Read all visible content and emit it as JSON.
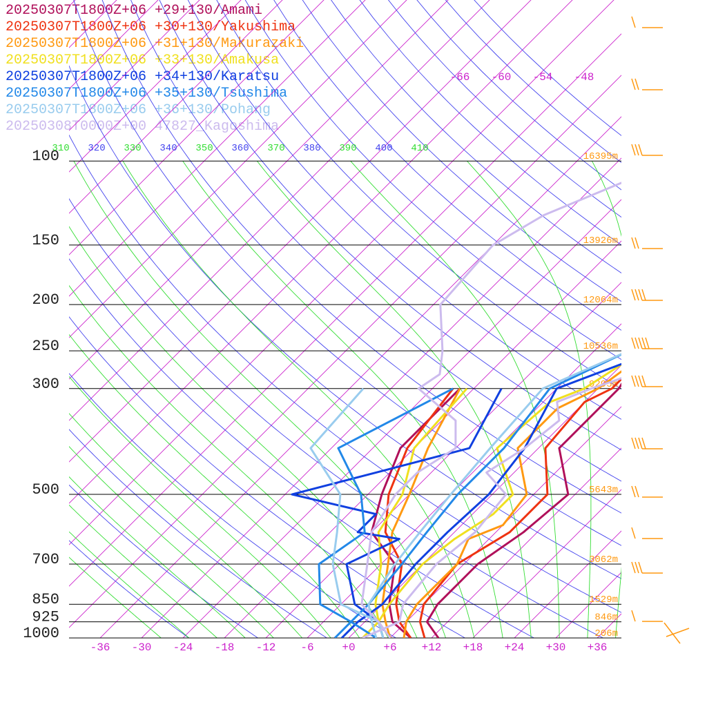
{
  "chart_data": {
    "type": "line",
    "title": "",
    "xlabel": "",
    "ylabel": "",
    "x_range": [
      -40,
      40
    ],
    "temperature_ticks": [
      "-36",
      "-30",
      "-24",
      "-18",
      "-12",
      "-6",
      "+0",
      "+6",
      "+12",
      "+18",
      "+24",
      "+30",
      "+36"
    ],
    "pressure_levels": [
      {
        "label": "100",
        "p": 100,
        "height": "16395m"
      },
      {
        "label": "150",
        "p": 150,
        "height": "13926m"
      },
      {
        "label": "200",
        "p": 200,
        "height": "12064m"
      },
      {
        "label": "250",
        "p": 250,
        "height": "10536m"
      },
      {
        "label": "300",
        "p": 300,
        "height": "9295m"
      },
      {
        "label": "500",
        "p": 500,
        "height": "5643m"
      },
      {
        "label": "700",
        "p": 700,
        "height": "3062m"
      },
      {
        "label": "850",
        "p": 850,
        "height": "1529m"
      },
      {
        "label": "925",
        "p": 925,
        "height": "846m"
      },
      {
        "label": "1000",
        "p": 1000,
        "height": "206m"
      }
    ],
    "theta_labels": [
      "310",
      "320",
      "330",
      "340",
      "350",
      "360",
      "370",
      "380",
      "390",
      "400",
      "410"
    ],
    "isotherm_labels_top": [
      "-66",
      "-60",
      "-54",
      "-48"
    ],
    "series": [
      {
        "name": "20250307T1800Z+06 +29+130/Amami",
        "color": "#b0105a",
        "temperature": [
          [
            1000,
            13
          ],
          [
            925,
            9
          ],
          [
            850,
            8
          ],
          [
            700,
            8
          ],
          [
            600,
            10
          ],
          [
            500,
            11
          ],
          [
            400,
            3
          ],
          [
            300,
            3
          ],
          [
            250,
            1
          ],
          [
            200,
            -1
          ],
          [
            150,
            -5
          ],
          [
            120,
            -8
          ],
          [
            100,
            -6
          ],
          [
            70,
            -4
          ],
          [
            50,
            18
          ]
        ],
        "dewpoint": [
          [
            1000,
            9
          ],
          [
            925,
            4
          ],
          [
            850,
            1
          ],
          [
            700,
            -4
          ],
          [
            600,
            -12
          ],
          [
            500,
            -16
          ],
          [
            400,
            -20
          ],
          [
            300,
            -20
          ]
        ]
      },
      {
        "name": "20250307T1800Z+06 +30+130/Yakushima",
        "color": "#ee3311",
        "temperature": [
          [
            1000,
            11
          ],
          [
            925,
            8
          ],
          [
            850,
            6
          ],
          [
            700,
            5
          ],
          [
            600,
            8
          ],
          [
            500,
            8
          ],
          [
            400,
            1
          ],
          [
            320,
            0
          ],
          [
            300,
            2
          ],
          [
            250,
            2
          ],
          [
            200,
            1
          ],
          [
            150,
            -4
          ],
          [
            130,
            -7
          ],
          [
            100,
            -4
          ],
          [
            70,
            -2
          ],
          [
            50,
            19
          ]
        ],
        "dewpoint": [
          [
            1000,
            9
          ],
          [
            925,
            5
          ],
          [
            850,
            2
          ],
          [
            700,
            -3
          ],
          [
            600,
            -10
          ],
          [
            500,
            -15
          ],
          [
            400,
            -19
          ],
          [
            300,
            -21
          ]
        ]
      },
      {
        "name": "20250307T1800Z+06 +31+130/Makurazaki",
        "color": "#ff9911",
        "temperature": [
          [
            1000,
            8
          ],
          [
            925,
            6
          ],
          [
            850,
            5
          ],
          [
            700,
            5
          ],
          [
            620,
            3
          ],
          [
            580,
            6
          ],
          [
            500,
            5
          ],
          [
            400,
            -3
          ],
          [
            330,
            -3
          ],
          [
            300,
            0
          ],
          [
            250,
            2
          ],
          [
            200,
            0
          ],
          [
            150,
            -1
          ],
          [
            130,
            -4
          ],
          [
            100,
            -1
          ],
          [
            70,
            4
          ],
          [
            50,
            20
          ]
        ],
        "dewpoint": [
          [
            1000,
            6
          ],
          [
            925,
            3
          ],
          [
            850,
            0
          ],
          [
            700,
            -5
          ],
          [
            600,
            -9
          ],
          [
            500,
            -12
          ],
          [
            400,
            -16
          ],
          [
            300,
            -20
          ]
        ]
      },
      {
        "name": "20250307T1800Z+06 +33+130/Amakusa",
        "color": "#f0e020",
        "temperature": [
          [
            1000,
            2
          ],
          [
            925,
            2
          ],
          [
            850,
            1
          ],
          [
            700,
            0
          ],
          [
            620,
            1
          ],
          [
            550,
            3
          ],
          [
            500,
            3
          ],
          [
            400,
            -6
          ],
          [
            320,
            -5
          ],
          [
            300,
            -2
          ],
          [
            250,
            1
          ],
          [
            200,
            0
          ],
          [
            150,
            1
          ],
          [
            120,
            1
          ],
          [
            100,
            3
          ],
          [
            70,
            8
          ],
          [
            50,
            22
          ]
        ],
        "dewpoint": [
          [
            1000,
            5
          ],
          [
            925,
            2
          ],
          [
            850,
            -1
          ],
          [
            700,
            -6
          ],
          [
            600,
            -11
          ],
          [
            500,
            -13
          ],
          [
            400,
            -18
          ],
          [
            300,
            -19
          ]
        ]
      },
      {
        "name": "20250307T1800Z+06 +34+130/Karatsu",
        "color": "#1040e0",
        "temperature": [
          [
            1000,
            -1
          ],
          [
            925,
            -1
          ],
          [
            850,
            0
          ],
          [
            700,
            -1
          ],
          [
            600,
            -1
          ],
          [
            500,
            -0.5
          ],
          [
            400,
            -2
          ],
          [
            300,
            -6
          ],
          [
            250,
            3
          ],
          [
            200,
            3
          ],
          [
            150,
            4
          ],
          [
            140,
            1
          ],
          [
            100,
            7
          ],
          [
            70,
            12
          ],
          [
            50,
            26
          ]
        ],
        "dewpoint": [
          [
            1000,
            5
          ],
          [
            925,
            2
          ],
          [
            850,
            -4
          ],
          [
            700,
            -11
          ],
          [
            620,
            -7
          ],
          [
            600,
            -14
          ],
          [
            550,
            -14
          ],
          [
            500,
            -29
          ],
          [
            450,
            -20
          ],
          [
            400,
            -10
          ],
          [
            300,
            -14
          ]
        ]
      },
      {
        "name": "20250307T1800Z+06 +35+130/Tsushima",
        "color": "#2288e8",
        "temperature": [
          [
            1000,
            -2
          ],
          [
            925,
            -2
          ],
          [
            850,
            -2
          ],
          [
            700,
            -3
          ],
          [
            600,
            -4
          ],
          [
            500,
            -5
          ],
          [
            400,
            -5
          ],
          [
            300,
            -7
          ],
          [
            250,
            -1
          ],
          [
            200,
            4
          ],
          [
            150,
            4
          ],
          [
            140,
            3
          ],
          [
            100,
            9
          ],
          [
            70,
            14
          ],
          [
            50,
            28
          ]
        ],
        "dewpoint": [
          [
            1000,
            4
          ],
          [
            925,
            -2
          ],
          [
            850,
            -9
          ],
          [
            700,
            -15
          ],
          [
            600,
            -13
          ],
          [
            500,
            -19
          ],
          [
            400,
            -29
          ],
          [
            300,
            -21
          ]
        ]
      },
      {
        "name": "20250307T1800Z+06 +36+130/Pohang",
        "color": "#99ccee",
        "temperature": [
          [
            1000,
            4
          ],
          [
            925,
            1
          ],
          [
            850,
            -2
          ],
          [
            700,
            -4
          ],
          [
            600,
            -5
          ],
          [
            500,
            -6
          ],
          [
            400,
            -7
          ],
          [
            300,
            -8
          ],
          [
            250,
            -1
          ],
          [
            200,
            6
          ],
          [
            150,
            7
          ],
          [
            100,
            11
          ],
          [
            70,
            16
          ],
          [
            50,
            30
          ]
        ],
        "dewpoint": [
          [
            1000,
            5
          ],
          [
            925,
            2
          ],
          [
            850,
            -6
          ],
          [
            700,
            -13
          ],
          [
            600,
            -17
          ],
          [
            500,
            -22
          ],
          [
            400,
            -33
          ],
          [
            300,
            -34
          ]
        ]
      },
      {
        "name": "20250308T0000Z+00 47827_Kagoshima",
        "color": "#ccbbee",
        "temperature": [
          [
            1000,
            2
          ],
          [
            925,
            5
          ],
          [
            850,
            3
          ],
          [
            700,
            2
          ],
          [
            600,
            3
          ],
          [
            500,
            2
          ],
          [
            450,
            -4
          ],
          [
            400,
            -2
          ],
          [
            350,
            -1
          ],
          [
            320,
            -4
          ],
          [
            300,
            -1
          ],
          [
            280,
            3
          ],
          [
            250,
            0
          ],
          [
            200,
            1
          ],
          [
            150,
            -2
          ],
          [
            120,
            -3
          ],
          [
            100,
            0
          ]
        ],
        "dewpoint": [
          [
            1000,
            6
          ],
          [
            925,
            2
          ],
          [
            850,
            -3
          ],
          [
            700,
            -8
          ],
          [
            600,
            -12
          ],
          [
            500,
            -14
          ],
          [
            450,
            -14
          ],
          [
            400,
            -12
          ],
          [
            350,
            -16
          ],
          [
            300,
            -26
          ],
          [
            280,
            -25
          ],
          [
            250,
            -28
          ],
          [
            200,
            -35
          ],
          [
            150,
            -36
          ],
          [
            130,
            -33
          ],
          [
            100,
            -22
          ]
        ]
      }
    ]
  },
  "colors": {
    "dry_adiabat": "#4444ee",
    "moist_adiabat": "#33dd33",
    "isotherm": "#cc22cc",
    "isobar": "#000000",
    "height_label": "#ff9911",
    "wind_barb": "#ff9911"
  }
}
